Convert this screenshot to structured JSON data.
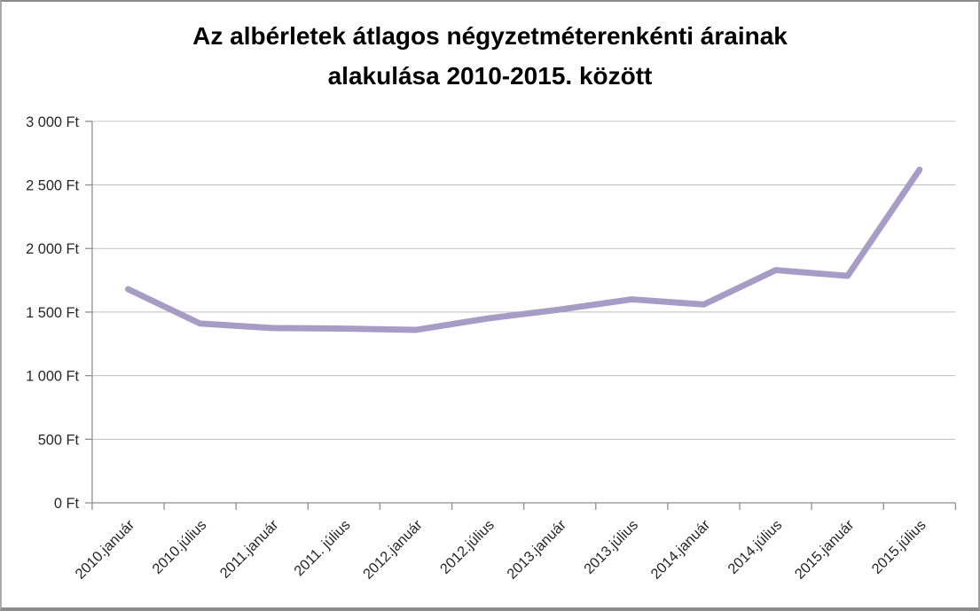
{
  "title": {
    "line1": "Az albérletek átlagos négyzetméterenkénti árainak",
    "line2": "alakulása 2010-2015. között"
  },
  "chart_data": {
    "type": "line",
    "title": "Az albérletek átlagos négyzetméterenkénti árainak alakulása 2010-2015. között",
    "categories": [
      "2010.január",
      "2010.július",
      "2011.január",
      "2011. július",
      "2012.január",
      "2012.július",
      "2013.január",
      "2013.július",
      "2014.január",
      "2014.július",
      "2015.január",
      "2015.július"
    ],
    "values": [
      1680,
      1410,
      1375,
      1370,
      1360,
      1450,
      1520,
      1600,
      1560,
      1830,
      1785,
      2620
    ],
    "unit": "Ft",
    "ylim": [
      0,
      3000
    ],
    "ytick_step": 500,
    "ytick_labels": [
      "0 Ft",
      "500 Ft",
      "1 000 Ft",
      "1 500 Ft",
      "2 000 Ft",
      "2 500 Ft",
      "3 000 Ft"
    ],
    "x_label_rotation": -45,
    "grid": true,
    "legend": "none",
    "line_color": "#A59DC6",
    "gridline_color": "#BFBFBF",
    "axis_color": "#8E8E8E",
    "tick_label_color": "#262626",
    "title_color": "#000000",
    "background_color": "#FFFFFF"
  }
}
